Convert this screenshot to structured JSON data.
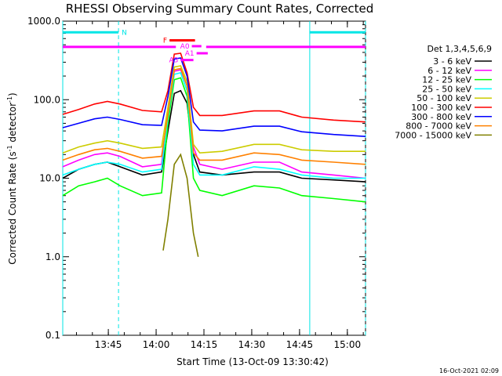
{
  "chart_data": {
    "type": "line",
    "title": "RHESSI Observing Summary Count Rates, Corrected",
    "xlabel": "Start Time (13-Oct-09 13:30:42)",
    "ylabel_main": "Corrected Count Rate (s",
    "ylabel_sup1": "-1",
    "ylabel_mid": " detector",
    "ylabel_sup2": "-1",
    "ylabel_end": ")",
    "yscale": "log",
    "ylim": [
      0.1,
      1000
    ],
    "xlim_minutes": [
      0,
      95
    ],
    "x_ticks": [
      {
        "label": "13:45",
        "minutes": 14.3
      },
      {
        "label": "14:00",
        "minutes": 29.3
      },
      {
        "label": "14:15",
        "minutes": 44.3
      },
      {
        "label": "14:30",
        "minutes": 59.3
      },
      {
        "label": "14:45",
        "minutes": 74.3
      },
      {
        "label": "15:00",
        "minutes": 89.3
      }
    ],
    "y_ticks": [
      {
        "label": "1000.0",
        "value": 1000
      },
      {
        "label": "100.0",
        "value": 100
      },
      {
        "label": "10.0",
        "value": 10
      },
      {
        "label": "1.0",
        "value": 1
      },
      {
        "label": "0.1",
        "value": 0.1
      }
    ],
    "legend_title": "Det 1,3,4,5,6,9",
    "legend_position": "right",
    "series": [
      {
        "name": "3 - 6 keV",
        "color": "#000000",
        "x": [
          0,
          5,
          10,
          14,
          18,
          25,
          31,
          33,
          35,
          37,
          39,
          41,
          43,
          50,
          60,
          68,
          75,
          85,
          95
        ],
        "y": [
          10,
          13,
          15,
          16,
          14,
          11,
          12,
          40,
          120,
          130,
          90,
          20,
          12,
          11,
          12,
          12,
          10,
          9.5,
          9
        ]
      },
      {
        "name": "6 - 12 keV",
        "color": "#ff00ff",
        "x": [
          0,
          5,
          10,
          14,
          18,
          25,
          31,
          33,
          35,
          37,
          39,
          41,
          43,
          50,
          60,
          68,
          75,
          85,
          95
        ],
        "y": [
          14,
          17,
          20,
          21,
          19,
          14,
          15,
          70,
          230,
          240,
          150,
          25,
          15,
          13,
          16,
          16,
          12,
          11,
          10
        ]
      },
      {
        "name": "12 - 25 keV",
        "color": "#00ff00",
        "x": [
          0,
          5,
          10,
          14,
          18,
          25,
          31,
          33,
          35,
          37,
          39,
          41,
          43,
          50,
          60,
          68,
          75,
          85,
          95
        ],
        "y": [
          6,
          8,
          9,
          10,
          8,
          6,
          6.5,
          50,
          180,
          190,
          110,
          10,
          7,
          6,
          8,
          7.5,
          6,
          5.5,
          5
        ]
      },
      {
        "name": "25 - 50 keV",
        "color": "#00ffff",
        "x": [
          0,
          5,
          10,
          14,
          18,
          25,
          31,
          33,
          35,
          37,
          39,
          41,
          43,
          50,
          60,
          68,
          75,
          85,
          95
        ],
        "y": [
          11,
          13,
          15,
          16,
          15,
          12,
          13,
          60,
          210,
          220,
          130,
          15,
          11,
          11,
          14,
          13,
          11,
          10,
          10
        ]
      },
      {
        "name": "50 - 100 keV",
        "color": "#cccc00",
        "x": [
          0,
          5,
          10,
          14,
          18,
          25,
          31,
          33,
          35,
          37,
          39,
          41,
          43,
          50,
          60,
          68,
          75,
          85,
          95
        ],
        "y": [
          21,
          25,
          28,
          30,
          28,
          24,
          25,
          80,
          260,
          270,
          170,
          27,
          21,
          22,
          27,
          27,
          23,
          22,
          22
        ]
      },
      {
        "name": "100 - 300 keV",
        "color": "#ff0000",
        "x": [
          0,
          5,
          10,
          14,
          18,
          25,
          31,
          33,
          35,
          37,
          39,
          41,
          43,
          50,
          60,
          68,
          75,
          85,
          95
        ],
        "y": [
          65,
          75,
          88,
          95,
          88,
          73,
          70,
          130,
          380,
          390,
          220,
          80,
          63,
          63,
          72,
          72,
          60,
          55,
          52
        ]
      },
      {
        "name": "300 - 800 keV",
        "color": "#0000ff",
        "x": [
          0,
          5,
          10,
          14,
          18,
          25,
          31,
          33,
          35,
          37,
          39,
          41,
          43,
          50,
          60,
          68,
          75,
          85,
          95
        ],
        "y": [
          44,
          50,
          57,
          60,
          56,
          48,
          47,
          110,
          330,
          340,
          200,
          52,
          41,
          40,
          46,
          46,
          39,
          36,
          34
        ]
      },
      {
        "name": "800 - 7000 keV",
        "color": "#ff8000",
        "x": [
          0,
          5,
          10,
          14,
          18,
          25,
          31,
          33,
          35,
          37,
          39,
          41,
          43,
          50,
          60,
          68,
          75,
          85,
          95
        ],
        "y": [
          17,
          20,
          23,
          24,
          22,
          18,
          19,
          65,
          240,
          250,
          150,
          21,
          17,
          17,
          21,
          20,
          17,
          16,
          15
        ]
      },
      {
        "name": "7000 - 15000 keV",
        "color": "#808000",
        "x": [
          31.5,
          33,
          35,
          37,
          39,
          41,
          42.5
        ],
        "y": [
          1.2,
          3,
          15,
          20,
          10,
          2,
          1.0
        ]
      }
    ],
    "attenuator_bars": [
      {
        "label": "F",
        "x_start": 33.5,
        "x_end": 41.5,
        "level_y": 570,
        "color": "#ff0000"
      },
      {
        "label": "A0",
        "x_start": 40.5,
        "x_end": 43.5,
        "level_y": 480,
        "color": "#ff00ff"
      },
      {
        "label": "A1",
        "x_start": 42.0,
        "x_end": 45.5,
        "level_y": 390,
        "color": "#ff00ff"
      },
      {
        "label": "A3",
        "x_start": 37.0,
        "x_end": 41.0,
        "level_y": 320,
        "color": "#ff00ff"
      }
    ],
    "night_bars": [
      {
        "label": "N",
        "x_start": 0,
        "x_end": 17.5,
        "level_y": 720,
        "color": "#00e6e6"
      },
      {
        "label": "",
        "x_start": 77.5,
        "x_end": 95,
        "level_y": 720,
        "color": "#00e6e6"
      }
    ],
    "saa_bars": [
      {
        "x_start": 0,
        "x_end": 35.5,
        "level_y": 470,
        "color": "#ff00ff"
      },
      {
        "x_start": 45.0,
        "x_end": 95,
        "level_y": 470,
        "color": "#ff00ff"
      }
    ],
    "vertical_lines": [
      {
        "minutes": 0,
        "style": "solid",
        "color": "#00e6e6"
      },
      {
        "minutes": 17.5,
        "style": "dashed",
        "color": "#00e6e6"
      },
      {
        "minutes": 77.5,
        "style": "solid",
        "color": "#00e6e6"
      },
      {
        "minutes": 95,
        "style": "dashed",
        "color": "#00e6e6"
      }
    ],
    "timestamp": "16-Oct-2021 02:09"
  }
}
